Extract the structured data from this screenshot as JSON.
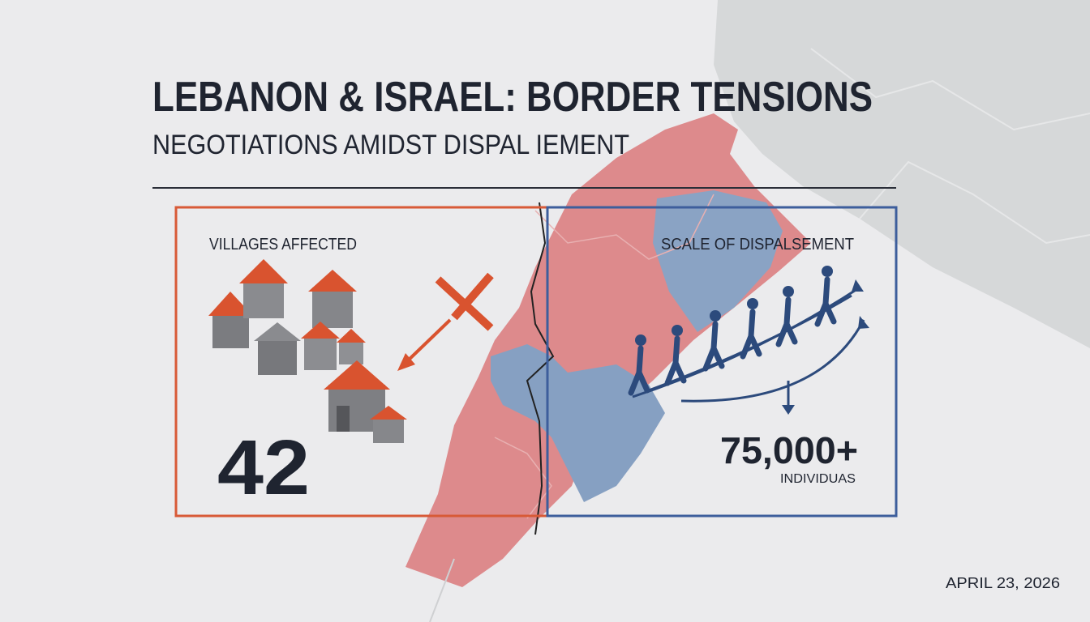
{
  "header": {
    "title": "LEBANON & ISRAEL: BORDER TENSIONS",
    "subtitle": "NEGOTIATIONS AMIDST DISPAL IEMENT"
  },
  "panels": [
    {
      "label": "VILLAGES AFFECTED",
      "value": "42"
    },
    {
      "label": "SCALE OF DISPALSEMENT",
      "value": "75,000+",
      "unit": "INDIVIDUAS"
    }
  ],
  "date": "APRIL 23, 2026"
}
